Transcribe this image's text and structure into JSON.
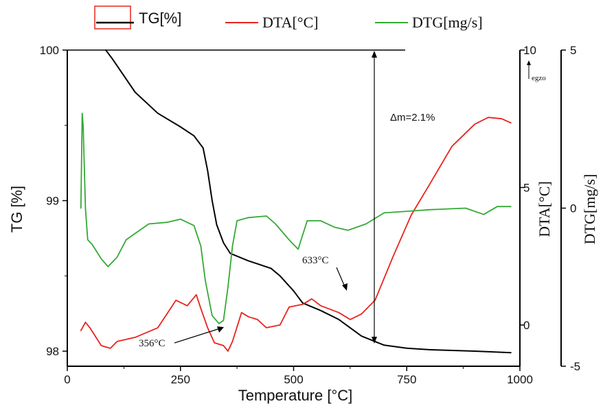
{
  "chart_data": {
    "type": "line",
    "xlabel": "Temperature [°C]",
    "x_ticks": [
      0,
      250,
      500,
      750,
      1000
    ],
    "xlim": [
      0,
      1000
    ],
    "y_axes": [
      {
        "id": "tg",
        "label": "TG [%]",
        "lim": [
          97.9,
          100
        ],
        "ticks": [
          98,
          99,
          100
        ],
        "side": "left"
      },
      {
        "id": "dta",
        "label": "DTA[°C]",
        "lim": [
          -1.5,
          10
        ],
        "ticks": [
          0,
          5,
          10
        ],
        "side": "right",
        "note": "egzo"
      },
      {
        "id": "dtg",
        "label": "DTG[mg/s]",
        "lim": [
          -5,
          5
        ],
        "ticks": [
          -5,
          0,
          5
        ],
        "side": "right"
      }
    ],
    "legend": [
      "TG[%]",
      "DTA[°C]",
      "DTG[mg/s]"
    ],
    "legend_position": "top",
    "series": [
      {
        "name": "TG[%]",
        "axis": "tg",
        "color": "#000000",
        "points": [
          [
            85,
            100
          ],
          [
            100,
            99.94
          ],
          [
            150,
            99.72
          ],
          [
            200,
            99.58
          ],
          [
            250,
            99.49
          ],
          [
            280,
            99.43
          ],
          [
            300,
            99.35
          ],
          [
            310,
            99.2
          ],
          [
            320,
            99.0
          ],
          [
            330,
            98.84
          ],
          [
            345,
            98.72
          ],
          [
            360,
            98.65
          ],
          [
            400,
            98.6
          ],
          [
            450,
            98.55
          ],
          [
            470,
            98.5
          ],
          [
            500,
            98.4
          ],
          [
            520,
            98.32
          ],
          [
            560,
            98.27
          ],
          [
            600,
            98.21
          ],
          [
            650,
            98.1
          ],
          [
            700,
            98.04
          ],
          [
            750,
            98.02
          ],
          [
            800,
            98.01
          ],
          [
            900,
            98.0
          ],
          [
            980,
            97.99
          ]
        ]
      },
      {
        "name": "DTA[°C]",
        "axis": "dta",
        "color": "#e8231c",
        "points": [
          [
            30,
            -0.2
          ],
          [
            40,
            0.1
          ],
          [
            50,
            -0.1
          ],
          [
            75,
            -0.75
          ],
          [
            95,
            -0.85
          ],
          [
            110,
            -0.6
          ],
          [
            150,
            -0.45
          ],
          [
            200,
            -0.1
          ],
          [
            240,
            0.9
          ],
          [
            265,
            0.7
          ],
          [
            285,
            1.1
          ],
          [
            295,
            0.6
          ],
          [
            310,
            -0.1
          ],
          [
            325,
            -0.65
          ],
          [
            345,
            -0.75
          ],
          [
            355,
            -0.95
          ],
          [
            365,
            -0.6
          ],
          [
            385,
            0.45
          ],
          [
            400,
            0.3
          ],
          [
            420,
            0.2
          ],
          [
            440,
            -0.1
          ],
          [
            470,
            0.0
          ],
          [
            490,
            0.65
          ],
          [
            520,
            0.75
          ],
          [
            540,
            0.95
          ],
          [
            560,
            0.7
          ],
          [
            600,
            0.45
          ],
          [
            625,
            0.2
          ],
          [
            650,
            0.4
          ],
          [
            680,
            0.9
          ],
          [
            720,
            2.5
          ],
          [
            760,
            4.0
          ],
          [
            800,
            5.1
          ],
          [
            850,
            6.5
          ],
          [
            900,
            7.3
          ],
          [
            930,
            7.55
          ],
          [
            960,
            7.5
          ],
          [
            980,
            7.35
          ]
        ]
      },
      {
        "name": "DTG[mg/s]",
        "axis": "dtg",
        "color": "#33a933",
        "points": [
          [
            30,
            0
          ],
          [
            33,
            3
          ],
          [
            35,
            2.6
          ],
          [
            40,
            0
          ],
          [
            45,
            -1.0
          ],
          [
            55,
            -1.15
          ],
          [
            75,
            -1.6
          ],
          [
            90,
            -1.85
          ],
          [
            110,
            -1.55
          ],
          [
            130,
            -1.0
          ],
          [
            150,
            -0.8
          ],
          [
            180,
            -0.5
          ],
          [
            220,
            -0.45
          ],
          [
            250,
            -0.35
          ],
          [
            280,
            -0.55
          ],
          [
            295,
            -1.2
          ],
          [
            305,
            -2.3
          ],
          [
            320,
            -3.4
          ],
          [
            335,
            -3.65
          ],
          [
            345,
            -3.55
          ],
          [
            355,
            -2.5
          ],
          [
            365,
            -1.2
          ],
          [
            375,
            -0.4
          ],
          [
            400,
            -0.3
          ],
          [
            440,
            -0.25
          ],
          [
            460,
            -0.5
          ],
          [
            490,
            -1.0
          ],
          [
            510,
            -1.3
          ],
          [
            530,
            -0.4
          ],
          [
            560,
            -0.4
          ],
          [
            590,
            -0.6
          ],
          [
            620,
            -0.7
          ],
          [
            660,
            -0.5
          ],
          [
            700,
            -0.15
          ],
          [
            750,
            -0.1
          ],
          [
            800,
            -0.05
          ],
          [
            880,
            0.0
          ],
          [
            920,
            -0.2
          ],
          [
            950,
            0.05
          ],
          [
            980,
            0.05
          ]
        ]
      }
    ],
    "annotations": [
      {
        "id": "dm",
        "text": "Δm=2.1%"
      },
      {
        "id": "t356",
        "text": "356°C"
      },
      {
        "id": "t633",
        "text": "633°C"
      },
      {
        "id": "egzo",
        "text": "egzo"
      }
    ]
  }
}
